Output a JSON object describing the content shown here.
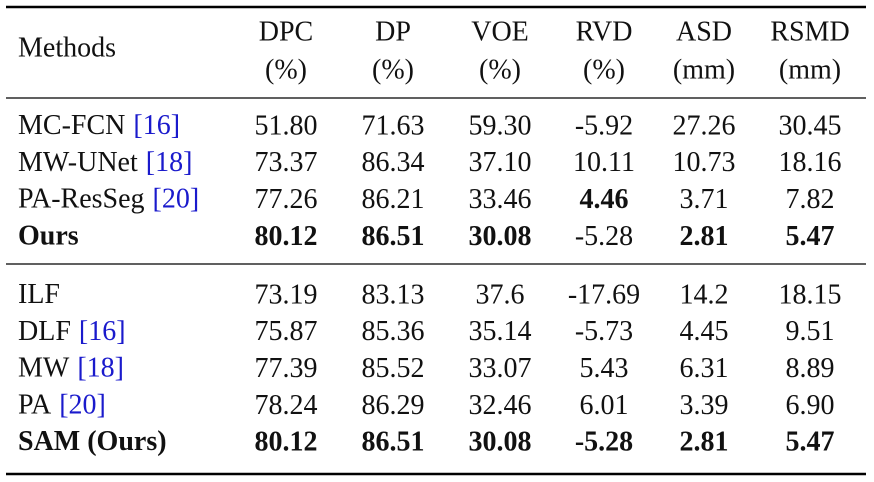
{
  "table": {
    "header": [
      [
        "Methods"
      ],
      [
        "DPC",
        "(%)"
      ],
      [
        "DP",
        "(%)"
      ],
      [
        "VOE",
        "(%)"
      ],
      [
        "RVD",
        "(%)"
      ],
      [
        "ASD",
        "(mm)"
      ],
      [
        "RSMD",
        "(mm)"
      ]
    ],
    "groups": [
      [
        {
          "method": "MC-FCN",
          "cite": "[16]",
          "cells": [
            "51.80",
            "71.63",
            "59.30",
            "-5.92",
            "27.26",
            "30.45"
          ],
          "bold": []
        },
        {
          "method": "MW-UNet",
          "cite": "[18]",
          "cells": [
            "73.37",
            "86.34",
            "37.10",
            "10.11",
            "10.73",
            "18.16"
          ],
          "bold": []
        },
        {
          "method": "PA-ResSeg",
          "cite": "[20]",
          "cells": [
            "77.26",
            "86.21",
            "33.46",
            "4.46",
            "3.71",
            "7.82"
          ],
          "bold": [
            3
          ]
        },
        {
          "method": "Ours",
          "cells": [
            "80.12",
            "86.51",
            "30.08",
            "-5.28",
            "2.81",
            "5.47"
          ],
          "bold": [
            -1,
            0,
            1,
            2,
            4,
            5
          ]
        }
      ],
      [
        {
          "method": "ILF",
          "cells": [
            "73.19",
            "83.13",
            "37.6",
            "-17.69",
            "14.2",
            "18.15"
          ],
          "bold": []
        },
        {
          "method": "DLF",
          "cite": "[16]",
          "cells": [
            "75.87",
            "85.36",
            "35.14",
            "-5.73",
            "4.45",
            "9.51"
          ],
          "bold": []
        },
        {
          "method": "MW",
          "cite": "[18]",
          "cells": [
            "77.39",
            "85.52",
            "33.07",
            "5.43",
            "6.31",
            "8.89"
          ],
          "bold": []
        },
        {
          "method": "PA",
          "cite": "[20]",
          "cells": [
            "78.24",
            "86.29",
            "32.46",
            "6.01",
            "3.39",
            "6.90"
          ],
          "bold": []
        },
        {
          "method": "SAM (Ours)",
          "cells": [
            "80.12",
            "86.51",
            "30.08",
            "-5.28",
            "2.81",
            "5.47"
          ],
          "bold": [
            -1,
            0,
            1,
            2,
            3,
            4,
            5
          ]
        }
      ]
    ]
  }
}
